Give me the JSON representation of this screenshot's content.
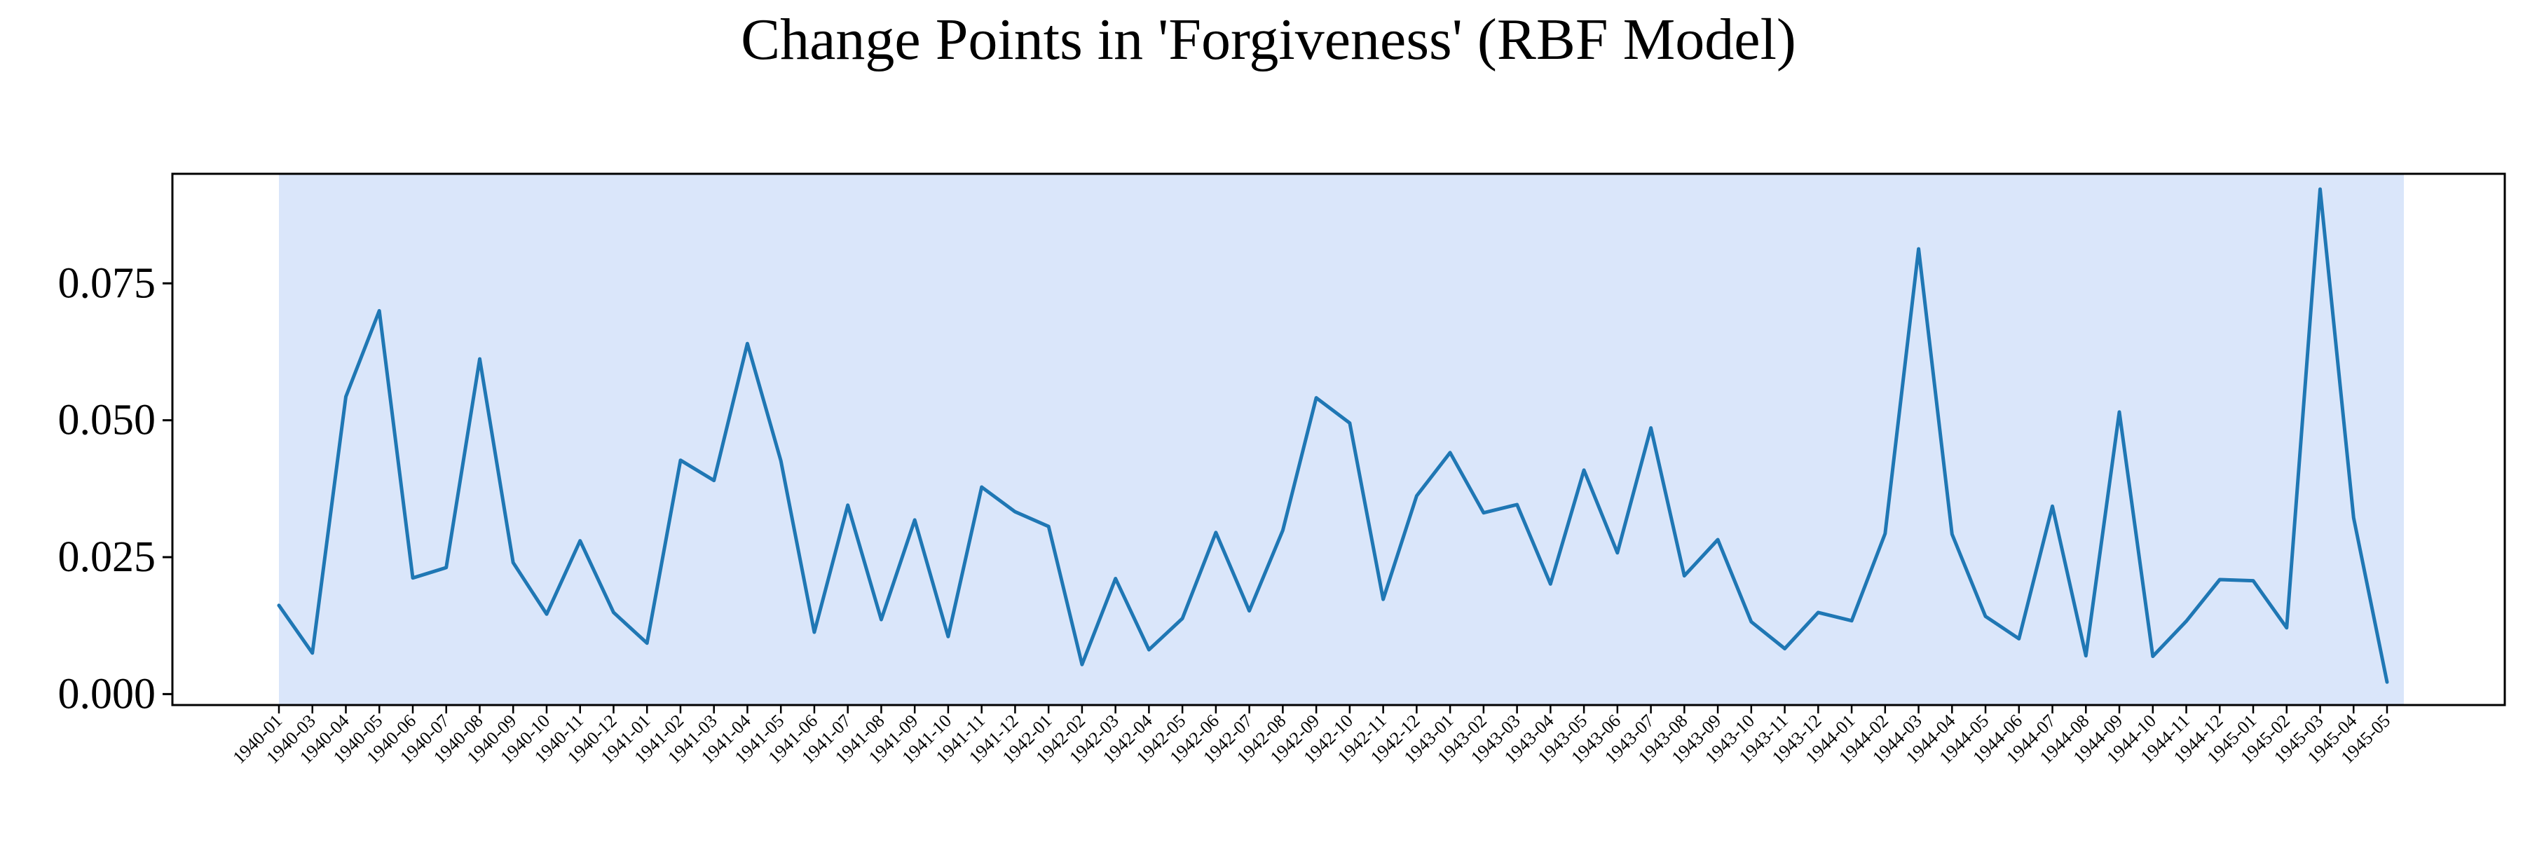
{
  "chart_data": {
    "type": "line",
    "title": "Change Points in 'Forgiveness' (RBF Model)",
    "xlabel": "",
    "ylabel": "",
    "x": [
      "1940-01",
      "1940-03",
      "1940-04",
      "1940-05",
      "1940-06",
      "1940-07",
      "1940-08",
      "1940-09",
      "1940-10",
      "1940-11",
      "1940-12",
      "1941-01",
      "1941-02",
      "1941-03",
      "1941-04",
      "1941-05",
      "1941-06",
      "1941-07",
      "1941-08",
      "1941-09",
      "1941-10",
      "1941-11",
      "1941-12",
      "1942-01",
      "1942-02",
      "1942-03",
      "1942-04",
      "1942-05",
      "1942-06",
      "1942-07",
      "1942-08",
      "1942-09",
      "1942-10",
      "1942-11",
      "1942-12",
      "1943-01",
      "1943-02",
      "1943-03",
      "1943-04",
      "1943-05",
      "1943-06",
      "1943-07",
      "1943-08",
      "1943-09",
      "1943-10",
      "1943-11",
      "1943-12",
      "1944-01",
      "1944-02",
      "1944-03",
      "1944-04",
      "1944-05",
      "1944-06",
      "1944-07",
      "1944-08",
      "1944-09",
      "1944-10",
      "1944-11",
      "1944-12",
      "1945-01",
      "1945-02",
      "1945-03",
      "1945-04",
      "1945-05"
    ],
    "series": [
      {
        "values": [
          0.0162,
          0.0075,
          0.0543,
          0.07,
          0.0212,
          0.0231,
          0.0612,
          0.024,
          0.0146,
          0.028,
          0.0149,
          0.0093,
          0.0427,
          0.039,
          0.064,
          0.0426,
          0.0113,
          0.0345,
          0.0136,
          0.0318,
          0.0105,
          0.0378,
          0.0333,
          0.0306,
          0.0054,
          0.0211,
          0.0081,
          0.0138,
          0.0295,
          0.0152,
          0.0299,
          0.0541,
          0.0495,
          0.0173,
          0.0362,
          0.0441,
          0.0331,
          0.0346,
          0.0201,
          0.0409,
          0.0258,
          0.0486,
          0.0216,
          0.0282,
          0.0132,
          0.0083,
          0.0149,
          0.0134,
          0.0293,
          0.0813,
          0.0292,
          0.0142,
          0.0101,
          0.0343,
          0.007,
          0.0515,
          0.0069,
          0.0133,
          0.0209,
          0.0207,
          0.0121,
          0.0922,
          0.0322,
          0.0022
        ],
        "color": "#1f77b4"
      }
    ],
    "yticks": [
      0.0,
      0.025,
      0.05,
      0.075
    ],
    "ytick_labels": [
      "0.000",
      "0.025",
      "0.050",
      "0.075"
    ],
    "ylim": [
      -0.002,
      0.095
    ],
    "shaded_span": {
      "from": "1940-01",
      "to": "1945-05",
      "color": "#dae6fa"
    },
    "grid": false,
    "legend": "none"
  }
}
